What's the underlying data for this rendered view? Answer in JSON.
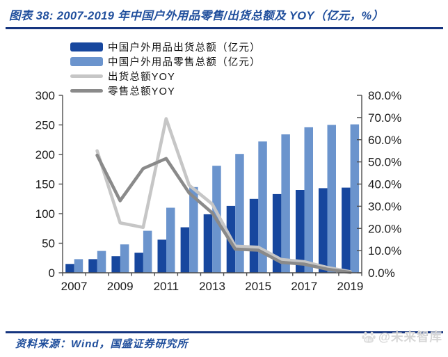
{
  "title": {
    "text": "图表 38:  2007-2019 年中国户外用品零售/出货总额及 YOY（亿元，%）"
  },
  "legend": {
    "items": [
      {
        "key": "shipment_total",
        "label": "中国户外用品出货总额（亿元）",
        "marker": "bar",
        "color": "#17479E"
      },
      {
        "key": "retail_total",
        "label": "中国户外用品零售总额（亿元）",
        "marker": "bar",
        "color": "#6B94CD"
      },
      {
        "key": "shipment_yoy",
        "label": "出货总额YOY",
        "marker": "line",
        "color": "#C6C6C6"
      },
      {
        "key": "retail_yoy",
        "label": "零售总额YOY",
        "marker": "line",
        "color": "#8A8A8A"
      }
    ]
  },
  "chart_data": {
    "type": "combo-bar-line",
    "title": "2007-2019 年中国户外用品零售/出货总额及 YOY（亿元，%）",
    "grid": false,
    "legend_position": "top-left",
    "categories": [
      "2007",
      "2008",
      "2009",
      "2010",
      "2011",
      "2012",
      "2013",
      "2014",
      "2015",
      "2016",
      "2017",
      "2018",
      "2019"
    ],
    "series": [
      {
        "key": "shipment_total",
        "name": "中国户外用品出货总额（亿元）",
        "type": "bar",
        "axis": "left",
        "unit": "亿元",
        "color": "#17479E",
        "values": [
          15,
          23,
          28,
          34,
          56,
          77,
          99,
          113,
          125,
          133,
          140,
          143,
          144
        ]
      },
      {
        "key": "retail_total",
        "name": "中国户外用品零售总额（亿元）",
        "type": "bar",
        "axis": "left",
        "unit": "亿元",
        "color": "#6B94CD",
        "values": [
          23,
          37,
          48,
          71,
          110,
          145,
          181,
          201,
          222,
          234,
          246,
          250,
          251
        ]
      },
      {
        "key": "shipment_yoy",
        "name": "出货总额YOY",
        "type": "line",
        "axis": "right",
        "unit": "%",
        "color": "#C6C6C6",
        "values": [
          null,
          55,
          22.5,
          20.5,
          69.5,
          39.5,
          31,
          12,
          11.5,
          6,
          5,
          2.4,
          0.5
        ]
      },
      {
        "key": "retail_yoy",
        "name": "零售总额YOY",
        "type": "line",
        "axis": "right",
        "unit": "%",
        "color": "#8A8A8A",
        "values": [
          null,
          53,
          32.5,
          47,
          51.5,
          36,
          27,
          10.7,
          10.2,
          4.7,
          3.9,
          1.6,
          0.2
        ]
      }
    ],
    "left_axis": {
      "min": 0,
      "max": 300,
      "step": 50,
      "tick_labels": [
        "0",
        "50",
        "100",
        "150",
        "200",
        "250",
        "300"
      ]
    },
    "right_axis": {
      "min": 0,
      "max": 80,
      "step": 10,
      "tick_labels": [
        "0.0%",
        "10.0%",
        "20.0%",
        "30.0%",
        "40.0%",
        "50.0%",
        "60.0%",
        "70.0%",
        "80.0%"
      ]
    },
    "x_tick_labels": [
      "2007",
      "2009",
      "2011",
      "2013",
      "2015",
      "2017",
      "2019"
    ]
  },
  "footer": {
    "source_text": "资料来源：Wind，国盛证券研究所"
  },
  "watermark": {
    "text": "@未来智库",
    "logo": "paw-icon"
  },
  "colors": {
    "title_blue": "#1F4E9C",
    "rule_navy": "#16357F",
    "axis_line": "#4D4D4D",
    "axis_text": "#1A1A1A",
    "watermark_gray": "#D6D6D6"
  }
}
